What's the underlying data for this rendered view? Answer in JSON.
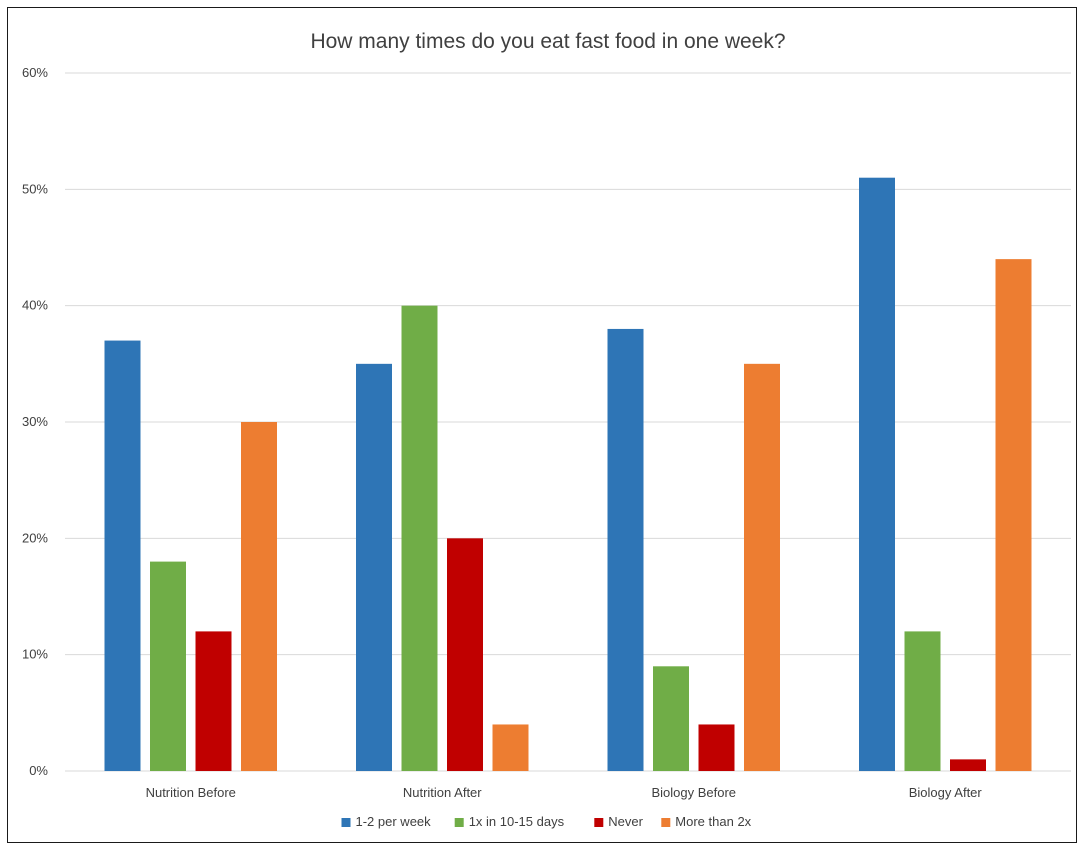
{
  "chart_data": {
    "type": "bar",
    "title": "How many times do you eat fast food in one week?",
    "xlabel": "",
    "ylabel": "",
    "categories": [
      "Nutrition Before",
      "Nutrition After",
      "Biology Before",
      "Biology After"
    ],
    "series": [
      {
        "name": "1-2 per week",
        "color": "#2E75B6",
        "values": [
          37,
          35,
          38,
          51
        ]
      },
      {
        "name": "1x in 10-15 days",
        "color": "#70AD47",
        "values": [
          18,
          40,
          9,
          12
        ]
      },
      {
        "name": "Never",
        "color": "#C00000",
        "values": [
          12,
          20,
          4,
          1
        ]
      },
      {
        "name": "More than 2x",
        "color": "#ED7D31",
        "values": [
          30,
          4,
          35,
          44
        ]
      }
    ],
    "ylim": [
      0,
      60
    ],
    "yticks": [
      0,
      10,
      20,
      30,
      40,
      50,
      60
    ],
    "ytick_labels": [
      "0%",
      "10%",
      "20%",
      "30%",
      "40%",
      "50%",
      "60%"
    ],
    "grid": true,
    "legend_position": "bottom",
    "gridline_color": "#D9D9D9"
  }
}
